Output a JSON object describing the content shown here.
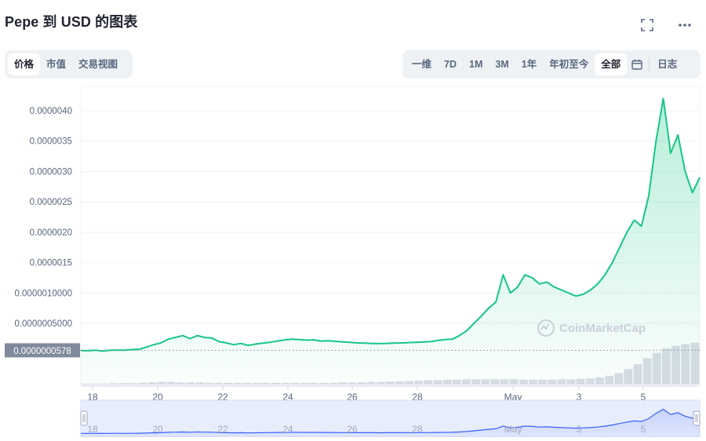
{
  "header": {
    "title": "Pepe 到 USD 的图表"
  },
  "icons": {
    "fullscreen": "fullscreen-icon",
    "more": "more-horizontal-icon",
    "calendar": "calendar-icon"
  },
  "metric_tabs": [
    {
      "label": "价格",
      "active": true
    },
    {
      "label": "市值",
      "active": false
    },
    {
      "label": "交易视图",
      "active": false
    }
  ],
  "range_tabs": [
    {
      "label": "一维",
      "active": false
    },
    {
      "label": "7D",
      "active": false
    },
    {
      "label": "1M",
      "active": false
    },
    {
      "label": "3M",
      "active": false
    },
    {
      "label": "1年",
      "active": false
    },
    {
      "label": "年初至今",
      "active": false
    },
    {
      "label": "全部",
      "active": true
    }
  ],
  "log_label": "日志",
  "watermark": "CoinMarketCap",
  "colors": {
    "line": "#16c784",
    "navigator": "#3861fb",
    "grid": "#eff2f5",
    "axis_text": "#58667e",
    "current_badge": "#808a9d"
  },
  "chart_data": {
    "type": "area",
    "series_points": [
      [
        "17 18:00",
        5.5e-08
      ],
      [
        "17 19:00",
        5e-08
      ],
      [
        "17 20:00",
        6e-08
      ],
      [
        "17 21:00",
        4.5e-08
      ],
      [
        "17 22:00",
        5.8e-08
      ],
      [
        "18 00:00",
        6.2e-08
      ],
      [
        "18 06:00",
        6e-08
      ],
      [
        "18 12:00",
        7e-08
      ],
      [
        "18 18:00",
        7.5e-08
      ],
      [
        "19 00:00",
        1.1e-07
      ],
      [
        "19 06:00",
        1.5e-07
      ],
      [
        "19 12:00",
        1.8e-07
      ],
      [
        "19 18:00",
        2.4e-07
      ],
      [
        "20 00:00",
        2.7e-07
      ],
      [
        "20 06:00",
        3e-07
      ],
      [
        "20 12:00",
        2.5e-07
      ],
      [
        "20 18:00",
        3e-07
      ],
      [
        "21 00:00",
        2.7e-07
      ],
      [
        "21 06:00",
        2.6e-07
      ],
      [
        "21 12:00",
        2e-07
      ],
      [
        "21 18:00",
        1.8e-07
      ],
      [
        "22 00:00",
        1.5e-07
      ],
      [
        "22 06:00",
        1.7e-07
      ],
      [
        "22 12:00",
        1.4e-07
      ],
      [
        "22 18:00",
        1.6e-07
      ],
      [
        "23 00:00",
        1.75e-07
      ],
      [
        "23 06:00",
        1.9e-07
      ],
      [
        "23 12:00",
        2.1e-07
      ],
      [
        "23 18:00",
        2.3e-07
      ],
      [
        "24 00:00",
        2.4e-07
      ],
      [
        "24 06:00",
        2.35e-07
      ],
      [
        "24 12:00",
        2.25e-07
      ],
      [
        "24 18:00",
        2.3e-07
      ],
      [
        "25 00:00",
        2.1e-07
      ],
      [
        "25 06:00",
        2.15e-07
      ],
      [
        "25 12:00",
        2.05e-07
      ],
      [
        "25 18:00",
        1.95e-07
      ],
      [
        "26 00:00",
        1.9e-07
      ],
      [
        "26 06:00",
        1.8e-07
      ],
      [
        "26 12:00",
        1.75e-07
      ],
      [
        "26 18:00",
        1.7e-07
      ],
      [
        "27 00:00",
        1.68e-07
      ],
      [
        "27 06:00",
        1.72e-07
      ],
      [
        "27 12:00",
        1.75e-07
      ],
      [
        "27 18:00",
        1.8e-07
      ],
      [
        "28 00:00",
        1.85e-07
      ],
      [
        "28 06:00",
        1.9e-07
      ],
      [
        "28 12:00",
        1.95e-07
      ],
      [
        "28 18:00",
        2e-07
      ],
      [
        "29 00:00",
        2.2e-07
      ],
      [
        "29 06:00",
        2.35e-07
      ],
      [
        "29 12:00",
        2.4e-07
      ],
      [
        "29 18:00",
        3e-07
      ],
      [
        "30 00:00",
        3.8e-07
      ],
      [
        "30 06:00",
        5e-07
      ],
      [
        "30 12:00",
        6.2e-07
      ],
      [
        "30 18:00",
        7.5e-07
      ],
      [
        "May 1 00:00",
        8.5e-07
      ],
      [
        "May 1 06:00",
        1.3e-06
      ],
      [
        "May 1 12:00",
        1e-06
      ],
      [
        "May 1 18:00",
        1.1e-06
      ],
      [
        "May 2 00:00",
        1.3e-06
      ],
      [
        "May 2 06:00",
        1.25e-06
      ],
      [
        "May 2 12:00",
        1.15e-06
      ],
      [
        "May 2 18:00",
        1.18e-06
      ],
      [
        "May 3 00:00",
        1.1e-06
      ],
      [
        "May 3 06:00",
        1.05e-06
      ],
      [
        "May 3 12:00",
        1e-06
      ],
      [
        "May 3 18:00",
        9.5e-07
      ],
      [
        "May 4 00:00",
        9.8e-07
      ],
      [
        "May 4 06:00",
        1.05e-06
      ],
      [
        "May 4 12:00",
        1.15e-06
      ],
      [
        "May 4 18:00",
        1.3e-06
      ],
      [
        "May 5 00:00",
        1.5e-06
      ],
      [
        "May 5 06:00",
        1.75e-06
      ],
      [
        "May 5 12:00",
        2e-06
      ],
      [
        "May 5 18:00",
        2.2e-06
      ],
      [
        "May 6 00:00",
        2.1e-06
      ],
      [
        "May 6 03:00",
        2.6e-06
      ],
      [
        "May 6 06:00",
        3.5e-06
      ],
      [
        "May 6 09:00",
        4.2e-06
      ],
      [
        "May 6 12:00",
        3.3e-06
      ],
      [
        "May 6 15:00",
        3.6e-06
      ],
      [
        "May 6 18:00",
        3e-06
      ],
      [
        "May 6 21:00",
        2.65e-06
      ],
      [
        "May 6 23:00",
        2.9e-06
      ]
    ],
    "y_tick_labels": [
      "0.0000040",
      "0.0000035",
      "0.0000030",
      "0.0000025",
      "0.0000020",
      "0.0000015",
      "0.0000010000",
      "0.0000005000"
    ],
    "y_tick_values": [
      4e-06,
      3.5e-06,
      3e-06,
      2.5e-06,
      2e-06,
      1.5e-06,
      1e-06,
      5e-07
    ],
    "x_tick_labels": [
      "18",
      "20",
      "22",
      "24",
      "26",
      "28",
      "May",
      "3",
      "5"
    ],
    "current_price_label": "0.0000000578",
    "current_price": 5.78e-08,
    "ylim": [
      -4e-08,
      4.4e-06
    ],
    "grid": true,
    "volume_relative": [
      0.02,
      0.02,
      0.02,
      0.03,
      0.03,
      0.03,
      0.04,
      0.05,
      0.06,
      0.06,
      0.05,
      0.05,
      0.05,
      0.04,
      0.04,
      0.04,
      0.04,
      0.04,
      0.04,
      0.04,
      0.04,
      0.04,
      0.04,
      0.04,
      0.04,
      0.04,
      0.04,
      0.05,
      0.05,
      0.05,
      0.06,
      0.06,
      0.07,
      0.07,
      0.08,
      0.09,
      0.1,
      0.1,
      0.11,
      0.11,
      0.12,
      0.12,
      0.12,
      0.12,
      0.12,
      0.12,
      0.11,
      0.11,
      0.11,
      0.11,
      0.12,
      0.12,
      0.13,
      0.14,
      0.16,
      0.2,
      0.26,
      0.35,
      0.46,
      0.6,
      0.72,
      0.82,
      0.88,
      0.92,
      0.95
    ]
  },
  "navigator": {
    "x_tick_labels": [
      "18",
      "20",
      "22",
      "24",
      "26",
      "28",
      "May",
      "3",
      "5"
    ]
  }
}
